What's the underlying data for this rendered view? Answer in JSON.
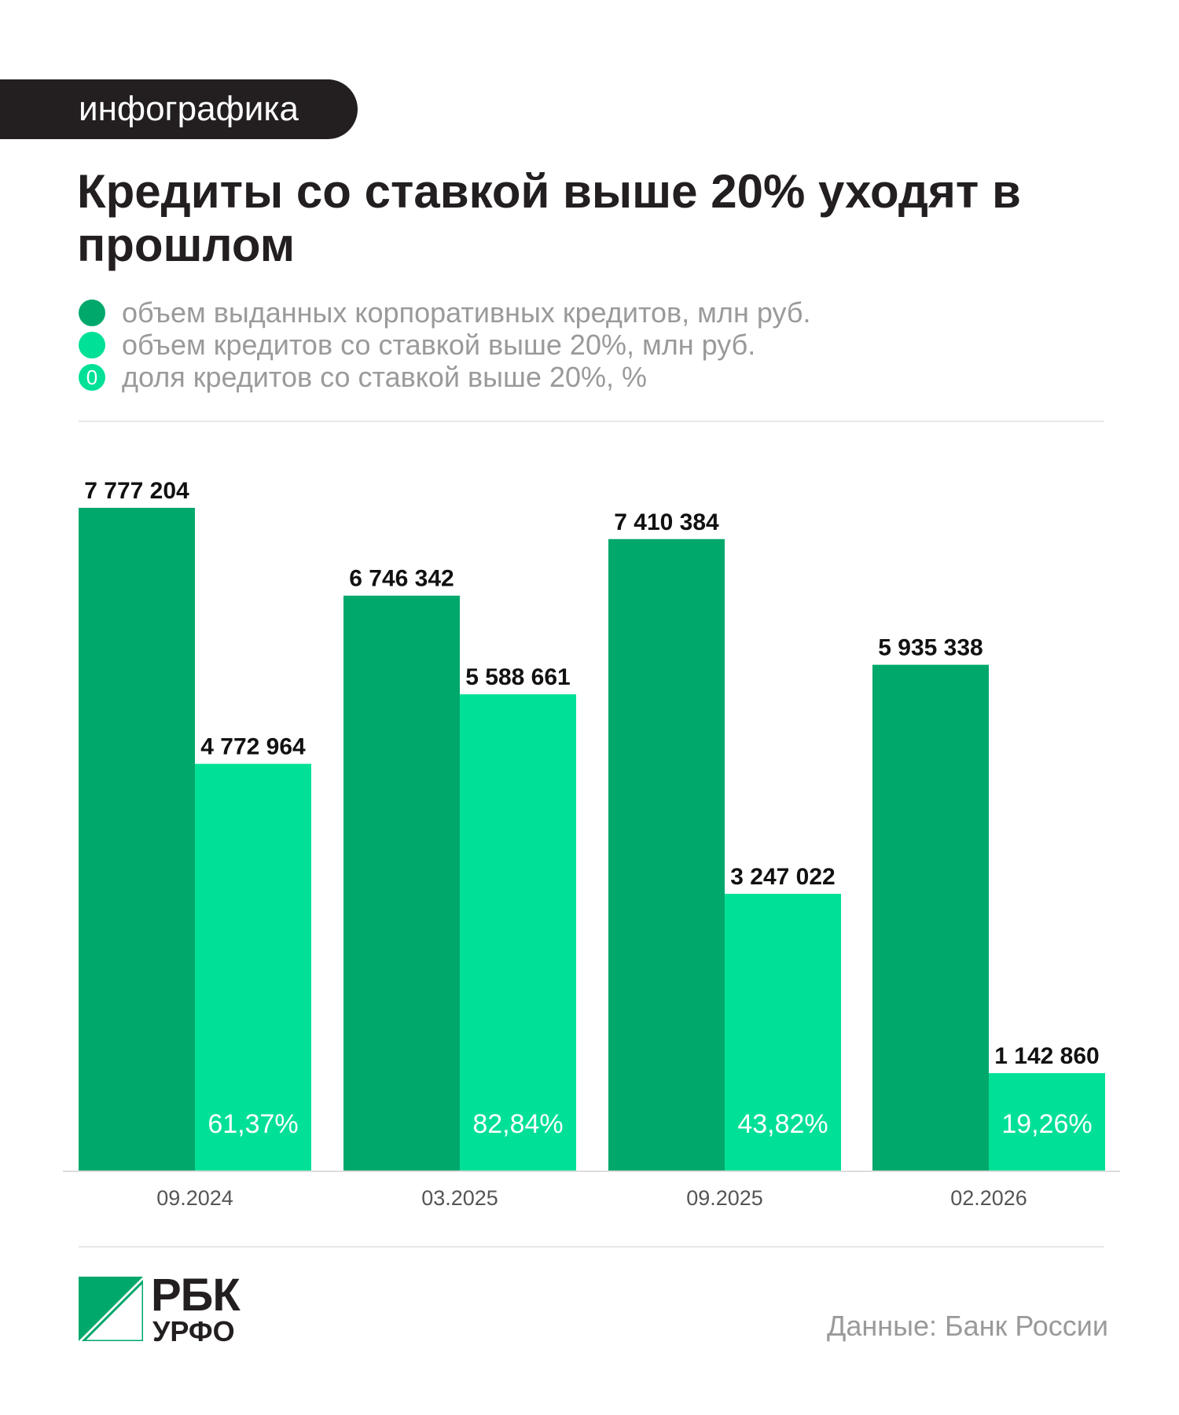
{
  "tag": "инфографика",
  "title": "Кредиты со ставкой выше 20% уходят в прошлом",
  "legend": [
    {
      "label": "объем выданных корпоративных кредитов, млн руб.",
      "color": "#00a86b",
      "style": "filled"
    },
    {
      "label": "объем кредитов со ставкой выше 20%, млн руб.",
      "color": "#00e097",
      "style": "filled"
    },
    {
      "label": "доля кредитов со ставкой выше 20%, %",
      "color": "#00e097",
      "style": "ring",
      "symbol": "0"
    }
  ],
  "chart_data": {
    "type": "bar",
    "categories": [
      "09.2024",
      "03.2025",
      "09.2025",
      "02.2026"
    ],
    "series": [
      {
        "name": "объем выданных корпоративных кредитов, млн руб.",
        "color": "#00a86b",
        "values": [
          7777204,
          6746342,
          7410384,
          5935338
        ],
        "labels": [
          "7 777 204",
          "6 746 342",
          "7 410 384",
          "5 935 338"
        ]
      },
      {
        "name": "объем кредитов со ставкой выше 20%, млн руб.",
        "color": "#00e097",
        "values": [
          4772964,
          5588661,
          3247022,
          1142860
        ],
        "labels": [
          "4 772 964",
          "5 588 661",
          "3 247 022",
          "1 142 860"
        ]
      }
    ],
    "share": {
      "name": "доля кредитов со ставкой выше 20%, %",
      "values": [
        61.37,
        82.84,
        43.82,
        19.26
      ],
      "labels": [
        "61,37%",
        "82,84%",
        "43,82%",
        "19,26%"
      ]
    },
    "title": "Кредиты со ставкой выше 20% уходят в прошлом",
    "xlabel": "",
    "ylabel": "",
    "ylim": [
      0,
      7777204
    ],
    "grid": false,
    "legend_position": "top-left"
  },
  "logo": {
    "name": "РБК",
    "sub": "УРФО",
    "colors": [
      "#00a86b",
      "#231f20"
    ]
  },
  "source": "Данные: Банк России"
}
